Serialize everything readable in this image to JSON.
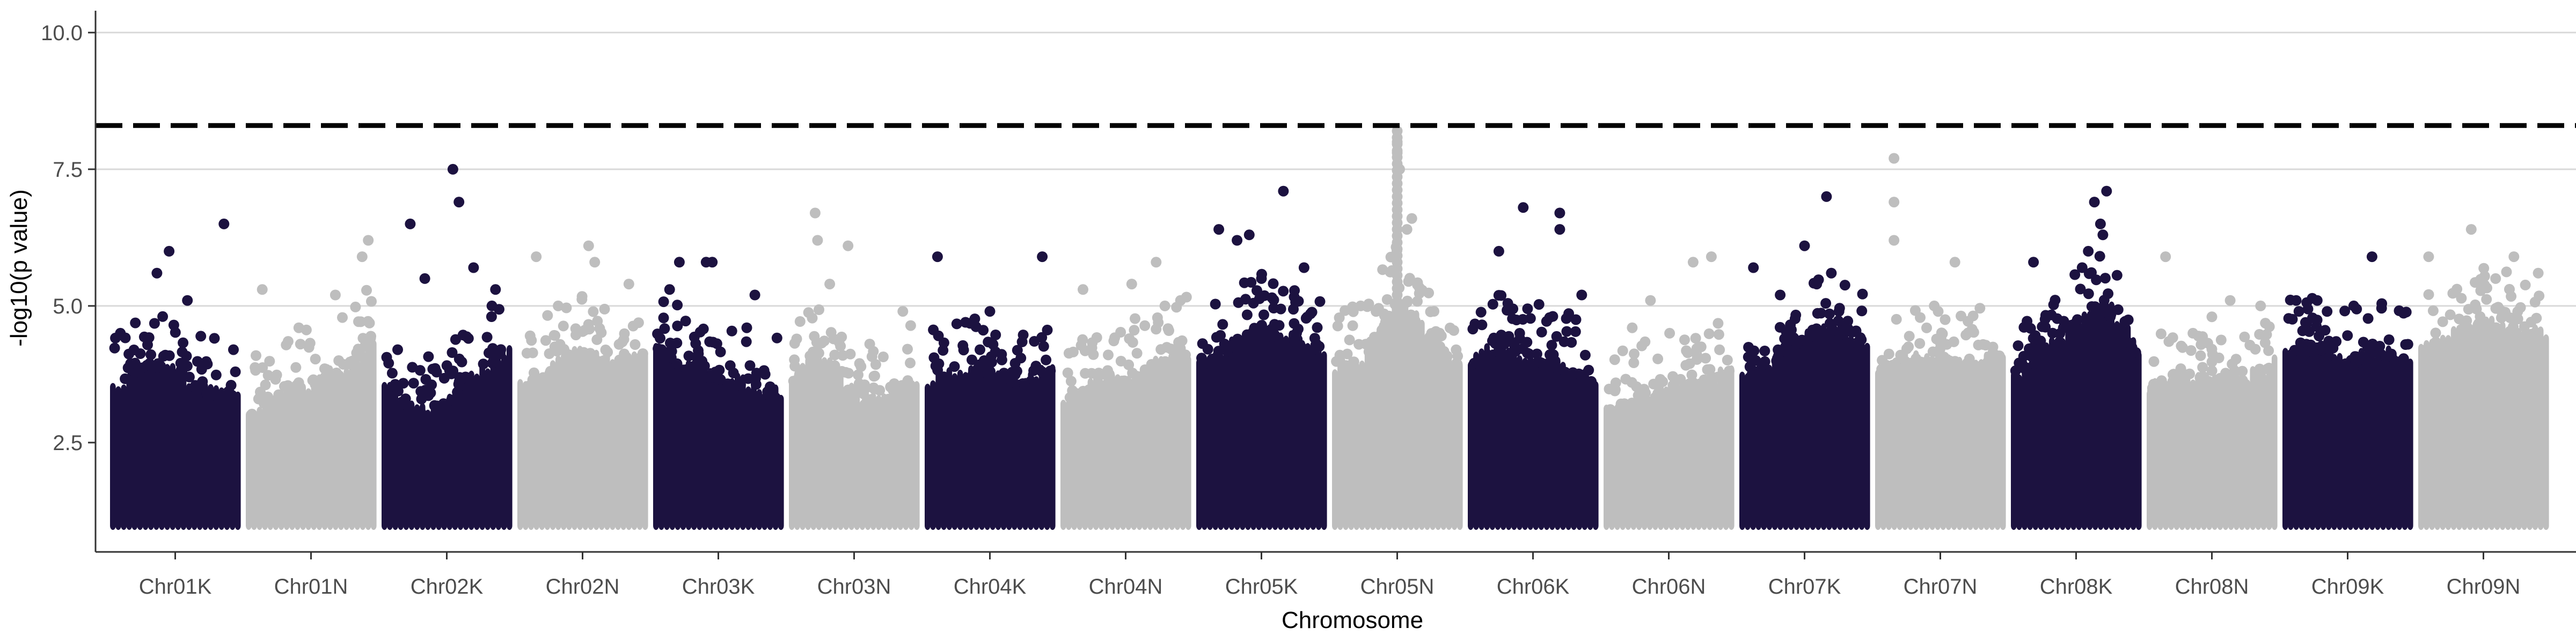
{
  "colors": {
    "dark": "#1c1240",
    "light": "#bebebe",
    "grid": "#d9d9d9",
    "axis": "#333333",
    "threshold": "#000000",
    "background": "#ffffff"
  },
  "chart_data": {
    "type": "scatter",
    "subtype": "manhattan",
    "title": "",
    "xlabel": "Chromosome",
    "ylabel": "-log10(p value)",
    "ylim": [
      0.5,
      10.4
    ],
    "y_ticks": [
      2.5,
      5.0,
      7.5,
      10.0
    ],
    "y_tick_labels": [
      "2.5",
      "5.0",
      "7.5",
      "10.0"
    ],
    "grid": "horizontal major lines",
    "legend": "none",
    "threshold_line": {
      "y": 8.3,
      "style": "dashed"
    },
    "min_y": 1.0,
    "categories": [
      "Chr01K",
      "Chr01N",
      "Chr02K",
      "Chr02N",
      "Chr03K",
      "Chr03N",
      "Chr04K",
      "Chr04N",
      "Chr05K",
      "Chr05N",
      "Chr06K",
      "Chr06N",
      "Chr07K",
      "Chr07N",
      "Chr08K",
      "Chr08N",
      "Chr09K",
      "Chr09N"
    ],
    "color_pattern": [
      "dark",
      "light"
    ],
    "series": [
      {
        "name": "Chr01K",
        "dense_max": [
          3.7,
          4.3,
          4.1,
          3.8,
          3.6
        ],
        "top_points": [
          [
            0.9,
            6.5
          ],
          [
            0.45,
            6.0
          ],
          [
            0.35,
            5.6
          ],
          [
            0.6,
            5.1
          ],
          [
            0.05,
            4.5
          ]
        ]
      },
      {
        "name": "Chr01N",
        "dense_max": [
          3.4,
          3.7,
          3.9,
          4.2,
          4.7
        ],
        "top_points": [
          [
            0.1,
            5.3
          ],
          [
            0.97,
            6.2
          ],
          [
            0.92,
            5.9
          ],
          [
            0.7,
            5.2
          ],
          [
            0.4,
            4.6
          ]
        ]
      },
      {
        "name": "Chr02K",
        "dense_max": [
          3.9,
          3.4,
          3.6,
          4.1,
          4.6
        ],
        "top_points": [
          [
            0.2,
            6.5
          ],
          [
            0.55,
            7.5
          ],
          [
            0.6,
            6.9
          ],
          [
            0.72,
            5.7
          ],
          [
            0.32,
            5.5
          ],
          [
            0.9,
            5.3
          ]
        ]
      },
      {
        "name": "Chr02N",
        "dense_max": [
          3.8,
          4.2,
          4.5,
          4.3,
          4.4
        ],
        "top_points": [
          [
            0.12,
            5.9
          ],
          [
            0.55,
            6.1
          ],
          [
            0.6,
            5.8
          ],
          [
            0.88,
            5.4
          ],
          [
            0.3,
            5.0
          ]
        ]
      },
      {
        "name": "Chr03K",
        "dense_max": [
          4.6,
          4.2,
          4.0,
          3.9,
          3.7
        ],
        "top_points": [
          [
            0.18,
            5.8
          ],
          [
            0.4,
            5.8
          ],
          [
            0.45,
            5.8
          ],
          [
            0.1,
            5.3
          ],
          [
            0.8,
            5.2
          ]
        ]
      },
      {
        "name": "Chr03N",
        "dense_max": [
          4.0,
          4.5,
          3.7,
          3.6,
          4.0
        ],
        "top_points": [
          [
            0.18,
            6.7
          ],
          [
            0.45,
            6.1
          ],
          [
            0.2,
            6.2
          ],
          [
            0.3,
            5.4
          ],
          [
            0.9,
            4.9
          ]
        ]
      },
      {
        "name": "Chr04K",
        "dense_max": [
          3.9,
          4.1,
          4.2,
          3.9,
          4.2
        ],
        "top_points": [
          [
            0.07,
            5.9
          ],
          [
            0.93,
            5.9
          ],
          [
            0.5,
            4.9
          ],
          [
            0.3,
            4.7
          ]
        ]
      },
      {
        "name": "Chr04N",
        "dense_max": [
          3.6,
          3.9,
          4.0,
          4.3,
          4.5
        ],
        "top_points": [
          [
            0.15,
            5.3
          ],
          [
            0.75,
            5.8
          ],
          [
            0.55,
            5.4
          ],
          [
            0.95,
            5.1
          ]
        ]
      },
      {
        "name": "Chr05K",
        "dense_max": [
          4.3,
          4.6,
          4.9,
          4.7,
          4.5
        ],
        "top_points": [
          [
            0.15,
            6.4
          ],
          [
            0.3,
            6.2
          ],
          [
            0.4,
            6.3
          ],
          [
            0.68,
            7.1
          ],
          [
            0.85,
            5.7
          ],
          [
            0.5,
            5.5
          ]
        ]
      },
      {
        "name": "Chr05N",
        "dense_max": [
          4.2,
          4.4,
          5.5,
          4.8,
          4.3
        ],
        "top_points": [
          [
            0.5,
            8.2
          ],
          [
            0.5,
            8.0
          ],
          [
            0.5,
            7.8
          ],
          [
            0.52,
            7.5
          ],
          [
            0.62,
            6.6
          ],
          [
            0.58,
            6.4
          ],
          [
            0.2,
            5.0
          ]
        ]
      },
      {
        "name": "Chr06K",
        "dense_max": [
          4.3,
          4.6,
          4.4,
          4.2,
          4.0
        ],
        "top_points": [
          [
            0.22,
            6.0
          ],
          [
            0.42,
            6.8
          ],
          [
            0.72,
            6.7
          ],
          [
            0.72,
            6.4
          ],
          [
            0.9,
            5.2
          ]
        ]
      },
      {
        "name": "Chr06N",
        "dense_max": [
          3.4,
          3.6,
          3.8,
          3.9,
          4.2
        ],
        "top_points": [
          [
            0.35,
            5.1
          ],
          [
            0.7,
            5.8
          ],
          [
            0.85,
            5.9
          ],
          [
            0.2,
            4.6
          ]
        ]
      },
      {
        "name": "Chr07K",
        "dense_max": [
          4.0,
          4.3,
          4.8,
          4.9,
          4.6
        ],
        "top_points": [
          [
            0.08,
            5.7
          ],
          [
            0.5,
            6.1
          ],
          [
            0.68,
            7.0
          ],
          [
            0.72,
            5.6
          ],
          [
            0.6,
            5.4
          ],
          [
            0.3,
            5.2
          ]
        ]
      },
      {
        "name": "Chr07N",
        "dense_max": [
          4.1,
          4.4,
          4.3,
          4.2,
          4.5
        ],
        "top_points": [
          [
            0.12,
            7.7
          ],
          [
            0.12,
            6.9
          ],
          [
            0.12,
            6.2
          ],
          [
            0.62,
            5.8
          ],
          [
            0.45,
            5.0
          ]
        ]
      },
      {
        "name": "Chr08K",
        "dense_max": [
          4.0,
          4.5,
          5.0,
          5.3,
          4.5
        ],
        "top_points": [
          [
            0.15,
            5.8
          ],
          [
            0.55,
            5.7
          ],
          [
            0.6,
            6.0
          ],
          [
            0.72,
            6.3
          ],
          [
            0.75,
            7.1
          ],
          [
            0.65,
            6.9
          ],
          [
            0.7,
            6.5
          ]
        ]
      },
      {
        "name": "Chr08N",
        "dense_max": [
          3.8,
          4.1,
          3.9,
          4.0,
          4.3
        ],
        "top_points": [
          [
            0.12,
            5.9
          ],
          [
            0.5,
            4.8
          ],
          [
            0.65,
            5.1
          ],
          [
            0.9,
            5.0
          ]
        ]
      },
      {
        "name": "Chr09K",
        "dense_max": [
          4.4,
          4.6,
          4.3,
          4.5,
          4.3
        ],
        "top_points": [
          [
            0.25,
            5.1
          ],
          [
            0.7,
            5.9
          ],
          [
            0.55,
            5.0
          ],
          [
            0.1,
            4.9
          ]
        ]
      },
      {
        "name": "Chr09N",
        "dense_max": [
          4.5,
          4.8,
          5.0,
          4.9,
          4.8
        ],
        "top_points": [
          [
            0.05,
            5.9
          ],
          [
            0.4,
            6.4
          ],
          [
            0.75,
            5.9
          ],
          [
            0.95,
            5.6
          ],
          [
            0.6,
            5.5
          ]
        ]
      }
    ]
  }
}
